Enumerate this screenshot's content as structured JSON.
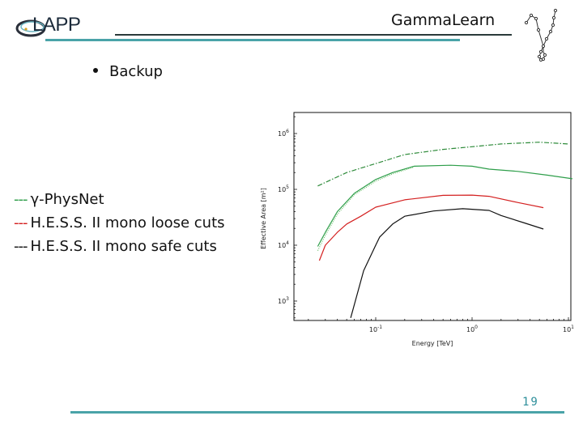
{
  "header": {
    "logo_text": "LAPP",
    "title": "GammaLearn",
    "accent_color": "#4aa3a8"
  },
  "bullets": [
    {
      "text": "Backup"
    }
  ],
  "legend": {
    "items": [
      {
        "dash": "---",
        "label": "γ-PhysNet",
        "color": "#2e9e4a"
      },
      {
        "dash": "---",
        "label": "H.E.S.S. II mono loose cuts",
        "color": "#d42020"
      },
      {
        "dash": "---",
        "label": "H.E.S.S. II mono safe cuts",
        "color": "#111111"
      }
    ]
  },
  "footer": {
    "page_number": "19"
  },
  "chart_data": {
    "type": "line",
    "title": "",
    "xlabel": "Energy [TeV]",
    "ylabel": "Effective Area [m²]",
    "xscale": "log",
    "yscale": "log",
    "xlim": [
      0.015,
      11
    ],
    "ylim": [
      500,
      2500000
    ],
    "x_ticks": [
      "10^-1",
      "10^0",
      "10^1"
    ],
    "y_ticks": [
      "10^3",
      "10^4",
      "10^5",
      "10^6"
    ],
    "grid": false,
    "series": [
      {
        "name": "γ-PhysNet (dash-dot)",
        "color": "#2e8b3a",
        "style": "dashdot",
        "x": [
          0.025,
          0.05,
          0.1,
          0.2,
          0.5,
          1.0,
          2.0,
          5.0,
          10.0
        ],
        "y": [
          115000,
          200000,
          290000,
          420000,
          520000,
          580000,
          650000,
          700000,
          650000
        ]
      },
      {
        "name": "γ-PhysNet (solid)",
        "color": "#2e9e4a",
        "style": "solid",
        "x": [
          0.025,
          0.03,
          0.04,
          0.06,
          0.1,
          0.15,
          0.25,
          0.6,
          1.0,
          1.5,
          3.0,
          6.0,
          11.0
        ],
        "y": [
          9500,
          17000,
          40000,
          85000,
          150000,
          200000,
          260000,
          270000,
          260000,
          230000,
          210000,
          180000,
          155000
        ]
      },
      {
        "name": "γ-PhysNet (dotted)",
        "color": "#6cbf6c",
        "style": "dotted",
        "x": [
          0.025,
          0.03,
          0.04,
          0.06,
          0.1,
          0.15,
          0.25
        ],
        "y": [
          8000,
          15000,
          36000,
          80000,
          140000,
          190000,
          250000
        ]
      },
      {
        "name": "H.E.S.S. II mono loose cuts",
        "color": "#d42020",
        "style": "solid",
        "x": [
          0.026,
          0.03,
          0.04,
          0.05,
          0.07,
          0.1,
          0.2,
          0.5,
          1.0,
          1.5,
          3.0,
          5.5
        ],
        "y": [
          5300,
          10000,
          17000,
          24000,
          33000,
          48000,
          65000,
          78000,
          79000,
          75000,
          58000,
          47000
        ]
      },
      {
        "name": "H.E.S.S. II mono safe cuts",
        "color": "#111111",
        "style": "solid",
        "x": [
          0.055,
          0.075,
          0.1,
          0.11,
          0.15,
          0.2,
          0.4,
          0.8,
          1.5,
          2.0,
          3.5,
          5.5
        ],
        "y": [
          500,
          3500,
          10000,
          14000,
          24000,
          33000,
          41000,
          45000,
          42000,
          34000,
          25000,
          19500
        ]
      }
    ]
  }
}
